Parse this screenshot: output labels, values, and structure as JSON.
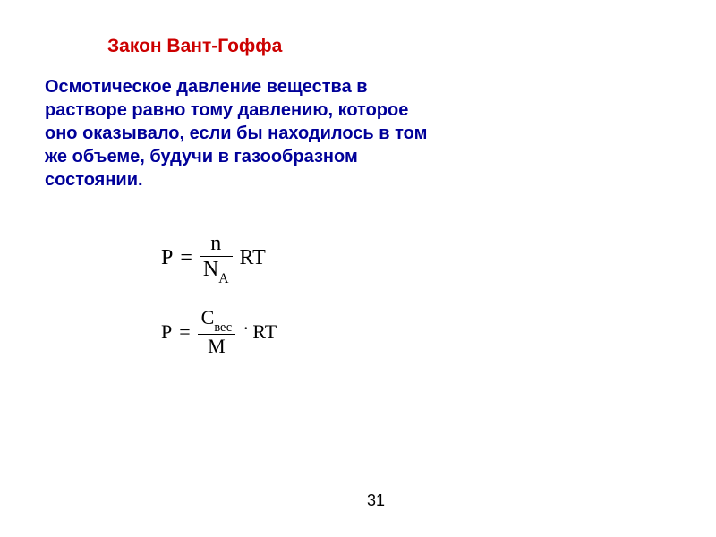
{
  "title": "Закон Вант-Гоффа",
  "description": "Осмотическое давление вещества в растворе равно тому давлению, которое оно оказывало, если бы находилось в том же объеме, будучи в газообразном состоянии.",
  "formula1": {
    "left_var": "P",
    "equals": "=",
    "numerator": "n",
    "denom_base": "N",
    "denom_sub": "A",
    "tail": "RT"
  },
  "formula2": {
    "left_var": "P",
    "equals": "=",
    "num_base": "C",
    "num_sub": "вес",
    "denominator": "M",
    "dot": "·",
    "tail": "RT"
  },
  "page_number": "31",
  "colors": {
    "title_color": "#cc0000",
    "description_color": "#000099",
    "formula_color": "#000000",
    "background": "#ffffff"
  }
}
